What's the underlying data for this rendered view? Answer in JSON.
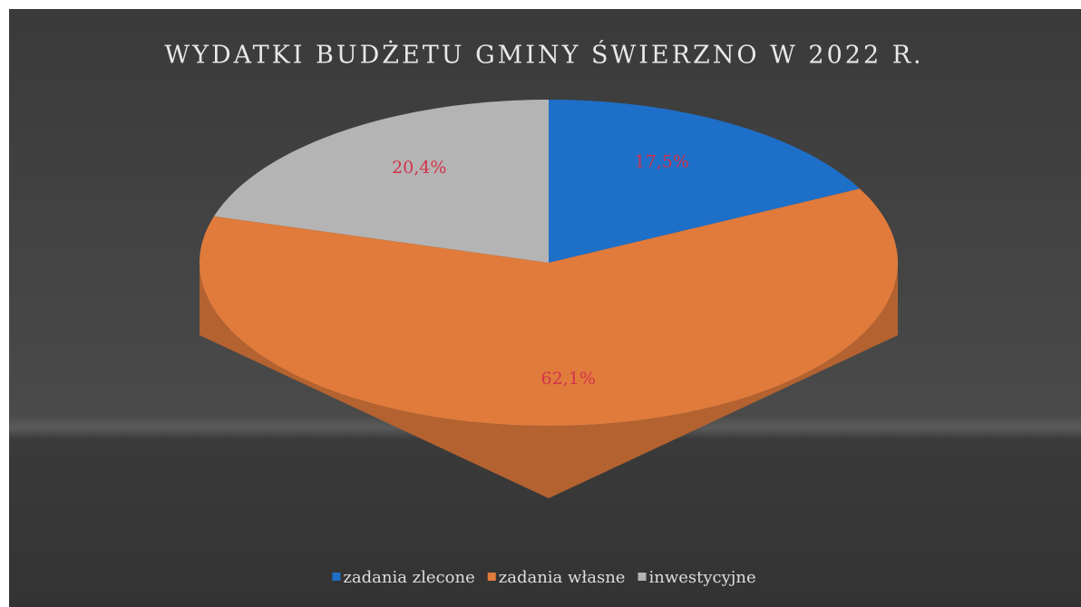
{
  "chart_data": {
    "type": "pie",
    "title": "WYDATKI BUDŻETU GMINY ŚWIERZNO W 2022 R.",
    "categories": [
      "zadania zlecone",
      "zadania własne",
      "inwestycyjne"
    ],
    "values": [
      17.5,
      62.1,
      20.4
    ],
    "value_labels": [
      "17,5%",
      "62,1%",
      "20,4%"
    ],
    "colors": [
      "#1e6fc8",
      "#e07b3c",
      "#b4b4b4"
    ],
    "legend": "bottom"
  }
}
